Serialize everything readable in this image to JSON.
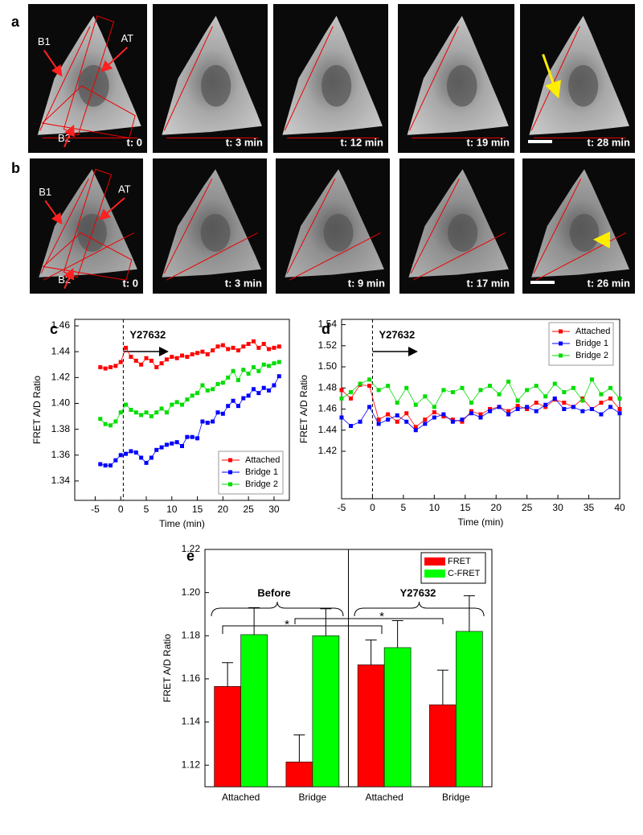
{
  "panel_labels": [
    "a",
    "b",
    "c",
    "d",
    "e"
  ],
  "image_rows": [
    {
      "images": [
        {
          "time": "t: 0",
          "labels": [
            "B1",
            "AT",
            "B2"
          ]
        },
        {
          "time": "t: 3 min"
        },
        {
          "time": "t: 12 min"
        },
        {
          "time": "t: 19 min"
        },
        {
          "time": "t: 28 min"
        }
      ]
    },
    {
      "images": [
        {
          "time": "t: 0",
          "labels": [
            "B1",
            "AT",
            "B2"
          ]
        },
        {
          "time": "t: 3 min"
        },
        {
          "time": "t: 9 min"
        },
        {
          "time": "t: 17 min"
        },
        {
          "time": "t: 26 min"
        }
      ]
    }
  ],
  "chart_data": [
    {
      "type": "line",
      "xlabel": "Time (min)",
      "ylabel": "FRET A/D Ratio",
      "annotation": "Y27632",
      "vline": 0.5,
      "legend": "lower right",
      "grid": false,
      "x": [
        -4,
        -3,
        -2,
        -1,
        0,
        1,
        2,
        3,
        4,
        5,
        6,
        7,
        8,
        9,
        10,
        11,
        12,
        13,
        14,
        15,
        16,
        17,
        18,
        19,
        20,
        21,
        22,
        23,
        24,
        25,
        26,
        27,
        28,
        29,
        30,
        31
      ],
      "xlim": [
        -9,
        33
      ],
      "xticks": [
        -5,
        0,
        5,
        10,
        15,
        20,
        25,
        30
      ],
      "ylim": [
        1.325,
        1.465
      ],
      "yticks": [
        1.34,
        1.36,
        1.38,
        {
          "value": 1.4,
          "label": "1.40"
        },
        1.42,
        1.44,
        1.46
      ],
      "series": [
        {
          "name": "Attached",
          "color": "#ff0000",
          "values": [
            1.428,
            1.427,
            1.428,
            1.429,
            1.432,
            1.443,
            1.436,
            1.433,
            1.43,
            1.435,
            1.433,
            1.428,
            1.431,
            1.434,
            1.436,
            1.435,
            1.437,
            1.436,
            1.438,
            1.439,
            1.44,
            1.438,
            1.441,
            1.444,
            1.445,
            1.442,
            1.443,
            1.441,
            1.444,
            1.446,
            1.448,
            1.443,
            1.446,
            1.442,
            1.443,
            1.444
          ]
        },
        {
          "name": "Bridge 1",
          "color": "#0000ff",
          "values": [
            1.353,
            1.352,
            1.352,
            1.356,
            1.36,
            1.361,
            1.363,
            1.362,
            1.358,
            1.354,
            1.358,
            1.364,
            1.366,
            1.368,
            1.369,
            1.37,
            1.367,
            1.374,
            1.374,
            1.373,
            1.386,
            1.385,
            1.386,
            1.393,
            1.392,
            1.398,
            1.402,
            1.398,
            1.404,
            1.406,
            1.411,
            1.408,
            1.412,
            1.41,
            1.414,
            1.421
          ]
        },
        {
          "name": "Bridge 2",
          "color": "#00dd00",
          "values": [
            1.388,
            1.384,
            1.383,
            1.386,
            1.393,
            1.399,
            1.395,
            1.393,
            1.391,
            1.393,
            1.39,
            1.393,
            1.396,
            1.393,
            1.399,
            1.401,
            1.399,
            1.403,
            1.406,
            1.408,
            1.414,
            1.41,
            1.411,
            1.415,
            1.416,
            1.42,
            1.425,
            1.418,
            1.426,
            1.423,
            1.428,
            1.425,
            1.43,
            1.429,
            1.431,
            1.432
          ]
        }
      ]
    },
    {
      "type": "line",
      "xlabel": "Time (min)",
      "ylabel": "FRET A/D Ratio",
      "annotation": "Y27632",
      "vline": 0,
      "legend": "upper right",
      "grid": false,
      "x": [
        -5,
        -3.5,
        -2,
        -0.5,
        1,
        2.5,
        4,
        5.5,
        7,
        8.5,
        10,
        11.5,
        13,
        14.5,
        16,
        17.5,
        19,
        20.5,
        22,
        23.5,
        25,
        26.5,
        28,
        29.5,
        31,
        32.5,
        34,
        35.5,
        37,
        38.5,
        40
      ],
      "xlim": [
        -5,
        40
      ],
      "xticks": [
        -5,
        0,
        5,
        10,
        15,
        20,
        25,
        30,
        35,
        40
      ],
      "ylim": [
        1.375,
        1.545
      ],
      "yticks": [
        1.42,
        1.44,
        1.46,
        1.48,
        {
          "value": 1.5,
          "label": "1.50"
        },
        1.52,
        1.54
      ],
      "series": [
        {
          "name": "Attached",
          "color": "#ff0000",
          "values": [
            1.478,
            1.47,
            1.483,
            1.482,
            1.45,
            1.455,
            1.448,
            1.456,
            1.443,
            1.45,
            1.457,
            1.453,
            1.45,
            1.448,
            1.458,
            1.455,
            1.46,
            1.462,
            1.458,
            1.463,
            1.46,
            1.466,
            1.462,
            1.469,
            1.466,
            1.462,
            1.47,
            1.46,
            1.466,
            1.47,
            1.46
          ]
        },
        {
          "name": "Bridge 1",
          "color": "#0000ff",
          "values": [
            1.452,
            1.444,
            1.448,
            1.462,
            1.446,
            1.45,
            1.454,
            1.448,
            1.44,
            1.446,
            1.452,
            1.455,
            1.448,
            1.45,
            1.456,
            1.452,
            1.458,
            1.462,
            1.455,
            1.46,
            1.462,
            1.458,
            1.464,
            1.47,
            1.46,
            1.462,
            1.458,
            1.46,
            1.455,
            1.462,
            1.456
          ]
        },
        {
          "name": "Bridge 2",
          "color": "#00dd00",
          "values": [
            1.47,
            1.476,
            1.484,
            1.488,
            1.478,
            1.482,
            1.466,
            1.48,
            1.464,
            1.472,
            1.462,
            1.478,
            1.476,
            1.48,
            1.466,
            1.478,
            1.482,
            1.474,
            1.486,
            1.468,
            1.478,
            1.482,
            1.472,
            1.484,
            1.476,
            1.48,
            1.468,
            1.488,
            1.474,
            1.48,
            1.47
          ]
        }
      ]
    },
    {
      "type": "bar",
      "ylabel": "FRET A/D Ratio",
      "legend": "upper right",
      "grid": false,
      "categories": [
        "Attached",
        "Bridge",
        "Attached",
        "Bridge"
      ],
      "annotations": [
        "Before",
        "Y27632",
        "*",
        "*"
      ],
      "ylim": [
        1.11,
        1.22
      ],
      "yticks": [
        1.12,
        1.14,
        1.16,
        1.18,
        {
          "value": 1.2,
          "label": "1.20"
        },
        1.22
      ],
      "series": [
        {
          "name": "FRET",
          "color": "#ff0000",
          "values": [
            1.1565,
            1.1215,
            1.1665,
            1.148
          ],
          "errors": [
            0.011,
            0.0125,
            0.0115,
            0.016
          ]
        },
        {
          "name": "C-FRET",
          "color": "#00ff00",
          "values": [
            1.1805,
            1.18,
            1.1745,
            1.182
          ],
          "errors": [
            0.0125,
            0.0125,
            0.0125,
            0.0165
          ]
        }
      ]
    }
  ]
}
